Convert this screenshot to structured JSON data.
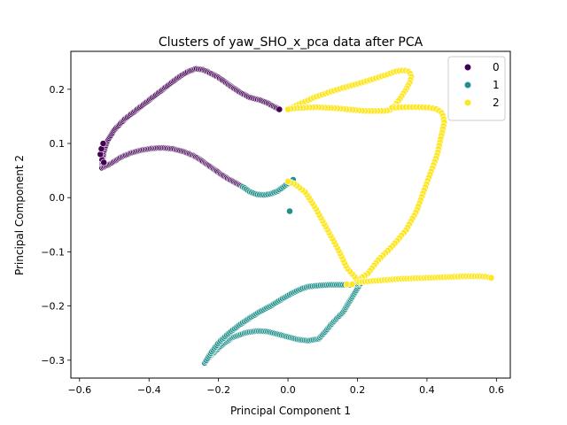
{
  "chart_data": {
    "type": "scatter",
    "title": "Clusters of yaw_SHO_x_pca data after PCA",
    "xlabel": "Principal Component 1",
    "ylabel": "Principal Component 2",
    "xlim": [
      -0.625,
      0.64
    ],
    "ylim": [
      -0.333,
      0.27
    ],
    "xticks": [
      -0.6,
      -0.4,
      -0.2,
      0.0,
      0.2,
      0.4,
      0.6
    ],
    "xtick_labels": [
      "−0.6",
      "−0.4",
      "−0.2",
      "0.0",
      "0.2",
      "0.4",
      "0.6"
    ],
    "yticks": [
      -0.3,
      -0.2,
      -0.1,
      0.0,
      0.1,
      0.2
    ],
    "ytick_labels": [
      "−0.3",
      "−0.2",
      "−0.1",
      "0.0",
      "0.1",
      "0.2"
    ],
    "grid": false,
    "legend_position": "top-right",
    "series": [
      {
        "name": "0",
        "color": "#440154",
        "paths": [
          {
            "x": [
              -0.535,
              -0.53,
              -0.52,
              -0.5,
              -0.47,
              -0.44,
              -0.41,
              -0.38,
              -0.35,
              -0.32,
              -0.29,
              -0.265,
              -0.245,
              -0.23,
              -0.2,
              -0.17,
              -0.14,
              -0.11,
              -0.08,
              -0.06,
              -0.04,
              -0.025
            ],
            "y": [
              0.06,
              0.085,
              0.105,
              0.125,
              0.145,
              0.16,
              0.175,
              0.19,
              0.205,
              0.22,
              0.232,
              0.238,
              0.236,
              0.232,
              0.222,
              0.208,
              0.195,
              0.185,
              0.18,
              0.175,
              0.168,
              0.163
            ],
            "n": 150
          },
          {
            "x": [
              -0.535,
              -0.51,
              -0.48,
              -0.45,
              -0.42,
              -0.39,
              -0.36,
              -0.33,
              -0.3,
              -0.27,
              -0.25,
              -0.23,
              -0.21,
              -0.19,
              -0.17,
              -0.15,
              -0.13
            ],
            "y": [
              0.055,
              0.063,
              0.075,
              0.083,
              0.088,
              0.091,
              0.092,
              0.09,
              0.085,
              0.077,
              0.069,
              0.06,
              0.051,
              0.042,
              0.034,
              0.027,
              0.02
            ],
            "n": 110
          }
        ],
        "points": [
          {
            "x": -0.535,
            "y": 0.07
          },
          {
            "x": -0.54,
            "y": 0.08
          },
          {
            "x": -0.537,
            "y": 0.09
          },
          {
            "x": -0.532,
            "y": 0.1
          },
          {
            "x": -0.53,
            "y": 0.065
          }
        ]
      },
      {
        "name": "1",
        "color": "#21918c",
        "paths": [
          {
            "x": [
              -0.13,
              -0.11,
              -0.09,
              -0.07,
              -0.05,
              -0.03,
              -0.015,
              -0.005,
              0.005,
              0.015
            ],
            "y": [
              0.02,
              0.011,
              0.006,
              0.005,
              0.007,
              0.012,
              0.019,
              0.024,
              0.028,
              0.033
            ],
            "n": 28
          },
          {
            "x": [
              -0.24,
              -0.22,
              -0.19,
              -0.16,
              -0.12,
              -0.09,
              -0.06,
              -0.03,
              0.0,
              0.03,
              0.06,
              0.09,
              0.11,
              0.13,
              0.16,
              0.19,
              0.21
            ],
            "y": [
              -0.305,
              -0.29,
              -0.272,
              -0.258,
              -0.249,
              -0.246,
              -0.247,
              -0.252,
              -0.257,
              -0.262,
              -0.264,
              -0.26,
              -0.245,
              -0.23,
              -0.21,
              -0.178,
              -0.157
            ],
            "n": 110
          },
          {
            "x": [
              -0.235,
              -0.22,
              -0.2,
              -0.17,
              -0.14,
              -0.11,
              -0.08,
              -0.05,
              -0.02,
              0.01,
              0.04,
              0.06,
              0.09,
              0.12,
              0.15,
              0.18,
              0.21
            ],
            "y": [
              -0.3,
              -0.285,
              -0.268,
              -0.25,
              -0.235,
              -0.222,
              -0.21,
              -0.2,
              -0.188,
              -0.177,
              -0.168,
              -0.164,
              -0.162,
              -0.161,
              -0.161,
              -0.161,
              -0.158
            ],
            "n": 90
          }
        ],
        "points": [
          {
            "x": 0.005,
            "y": -0.025
          }
        ]
      },
      {
        "name": "2",
        "color": "#fde725",
        "paths": [
          {
            "x": [
              0.0,
              0.04,
              0.08,
              0.12,
              0.16,
              0.2,
              0.24,
              0.28,
              0.31,
              0.335,
              0.35,
              0.355,
              0.35,
              0.34,
              0.325,
              0.31,
              0.3,
              0.28,
              0.25,
              0.22,
              0.19,
              0.17,
              0.14,
              0.11,
              0.08,
              0.05,
              0.02,
              0.0
            ],
            "y": [
              0.163,
              0.175,
              0.186,
              0.195,
              0.203,
              0.21,
              0.218,
              0.226,
              0.233,
              0.235,
              0.232,
              0.224,
              0.212,
              0.2,
              0.185,
              0.172,
              0.163,
              0.16,
              0.16,
              0.16,
              0.162,
              0.163,
              0.165,
              0.166,
              0.167,
              0.166,
              0.165,
              0.163
            ],
            "n": 90
          },
          {
            "x": [
              0.3,
              0.34,
              0.38,
              0.41,
              0.43,
              0.445,
              0.45,
              0.44,
              0.43,
              0.41,
              0.39,
              0.37,
              0.34,
              0.3,
              0.26,
              0.23,
              0.2,
              0.17,
              0.14,
              0.11,
              0.08,
              0.05,
              0.02,
              0.0
            ],
            "y": [
              0.166,
              0.167,
              0.167,
              0.166,
              0.163,
              0.155,
              0.14,
              0.11,
              0.08,
              0.045,
              0.01,
              -0.025,
              -0.06,
              -0.09,
              -0.115,
              -0.14,
              -0.152,
              -0.13,
              -0.09,
              -0.055,
              -0.02,
              0.01,
              0.025,
              0.03
            ],
            "n": 110
          },
          {
            "x": [
              0.205,
              0.24,
              0.28,
              0.32,
              0.36,
              0.4,
              0.44,
              0.48,
              0.52,
              0.55,
              0.57,
              0.585
            ],
            "y": [
              -0.156,
              -0.154,
              -0.152,
              -0.15,
              -0.149,
              -0.148,
              -0.147,
              -0.146,
              -0.145,
              -0.145,
              -0.146,
              -0.148
            ],
            "n": 48
          }
        ],
        "points": [
          {
            "x": 0.17,
            "y": -0.16
          },
          {
            "x": 0.185,
            "y": -0.16
          }
        ]
      }
    ]
  }
}
